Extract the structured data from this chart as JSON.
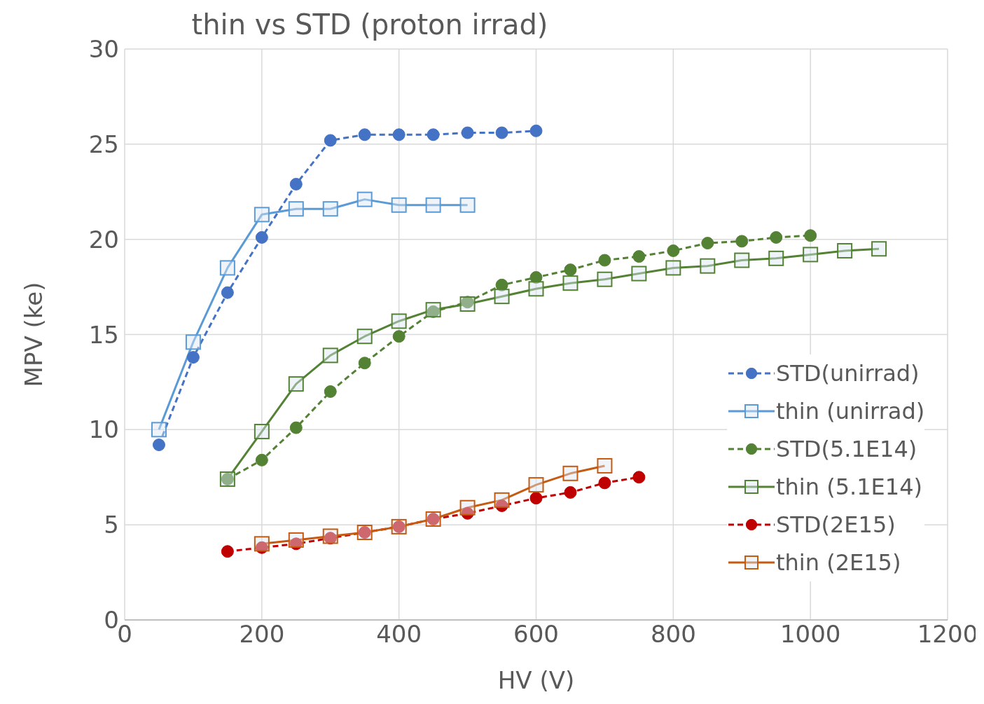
{
  "chart_data": {
    "type": "line",
    "title": "thin vs STD (proton irrad)",
    "xlabel": "HV (V)",
    "ylabel": "MPV (ke)",
    "xlim": [
      0,
      1200
    ],
    "xticks": [
      0,
      200,
      400,
      600,
      800,
      1000,
      1200
    ],
    "ylim": [
      0,
      30
    ],
    "yticks": [
      0,
      5,
      10,
      15,
      20,
      25,
      30
    ],
    "grid": true,
    "legend": "right",
    "series": [
      {
        "name": "STD(unirrad)",
        "color": "#4472c4",
        "marker": "circle",
        "line_style": "dashed",
        "x": [
          50,
          100,
          150,
          200,
          250,
          300,
          350,
          400,
          450,
          500,
          550,
          600
        ],
        "values": [
          9.2,
          13.8,
          17.2,
          20.1,
          22.9,
          25.2,
          25.5,
          25.5,
          25.5,
          25.6,
          25.6,
          25.7
        ]
      },
      {
        "name": "thin (unirrad)",
        "color": "#5b9bd5",
        "marker": "square",
        "line_style": "solid",
        "x": [
          50,
          100,
          150,
          200,
          250,
          300,
          350,
          400,
          450,
          500
        ],
        "values": [
          10.0,
          14.6,
          18.5,
          21.3,
          21.6,
          21.6,
          22.1,
          21.8,
          21.8,
          21.8
        ]
      },
      {
        "name": "STD(5.1E14)",
        "color": "#548235",
        "marker": "circle",
        "line_style": "dashed",
        "x": [
          150,
          200,
          250,
          300,
          350,
          400,
          450,
          500,
          550,
          600,
          650,
          700,
          750,
          800,
          850,
          900,
          950,
          1000
        ],
        "values": [
          7.4,
          8.4,
          10.1,
          12.0,
          13.5,
          14.9,
          16.2,
          16.7,
          17.6,
          18.0,
          18.4,
          18.9,
          19.1,
          19.4,
          19.8,
          19.9,
          20.1,
          20.2
        ]
      },
      {
        "name": "thin (5.1E14)",
        "color": "#548235",
        "marker": "square",
        "line_style": "solid",
        "x": [
          150,
          200,
          250,
          300,
          350,
          400,
          450,
          500,
          550,
          600,
          650,
          700,
          750,
          800,
          850,
          900,
          950,
          1000,
          1050,
          1100
        ],
        "values": [
          7.4,
          9.9,
          12.4,
          13.9,
          14.9,
          15.7,
          16.3,
          16.6,
          17.0,
          17.4,
          17.7,
          17.9,
          18.2,
          18.5,
          18.6,
          18.9,
          19.0,
          19.2,
          19.4,
          19.5
        ]
      },
      {
        "name": "STD(2E15)",
        "color": "#c00000",
        "marker": "circle",
        "line_style": "dashed",
        "x": [
          150,
          200,
          250,
          300,
          350,
          400,
          450,
          500,
          550,
          600,
          650,
          700,
          750
        ],
        "values": [
          3.6,
          3.8,
          4.0,
          4.3,
          4.6,
          4.9,
          5.3,
          5.6,
          6.0,
          6.4,
          6.7,
          7.2,
          7.5
        ]
      },
      {
        "name": "thin (2E15)",
        "color": "#c55a11",
        "marker": "square",
        "line_style": "solid",
        "x": [
          200,
          250,
          300,
          350,
          400,
          450,
          500,
          550,
          600,
          650,
          700
        ],
        "values": [
          4.0,
          4.2,
          4.4,
          4.6,
          4.9,
          5.3,
          5.9,
          6.3,
          7.1,
          7.7,
          8.1
        ]
      }
    ]
  }
}
